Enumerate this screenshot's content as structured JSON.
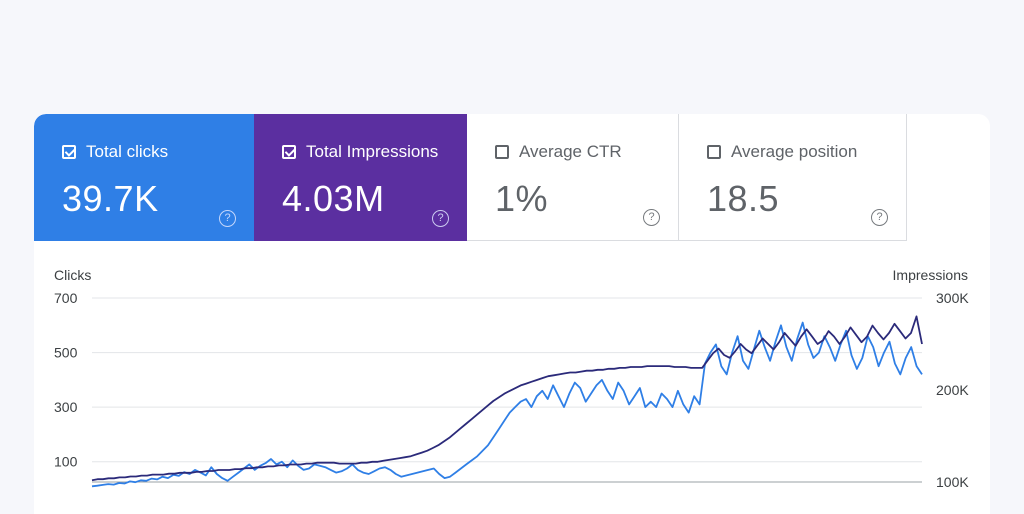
{
  "metrics": [
    {
      "label": "Total clicks",
      "value": "39.7K",
      "checked": true,
      "color": "#2f7fe6"
    },
    {
      "label": "Total Impressions",
      "value": "4.03M",
      "checked": true,
      "color": "#5b2fa0"
    },
    {
      "label": "Average CTR",
      "value": "1%",
      "checked": false
    },
    {
      "label": "Average position",
      "value": "18.5",
      "checked": false
    }
  ],
  "help_glyph": "?",
  "chart_data": {
    "type": "line",
    "left_axis": {
      "title": "Clicks",
      "ticks": [
        100,
        300,
        500,
        700
      ],
      "tick_labels": [
        "100",
        "300",
        "500",
        "700"
      ],
      "range": [
        0,
        700
      ]
    },
    "right_axis": {
      "title": "Impressions",
      "ticks": [
        100000,
        200000,
        300000
      ],
      "tick_labels": [
        "100K",
        "200K",
        "300K"
      ],
      "range": [
        100000,
        300000
      ]
    },
    "grid": true,
    "series": [
      {
        "axis": "left",
        "color": "#2f7fe6",
        "values": [
          10,
          12,
          15,
          18,
          16,
          22,
          20,
          28,
          25,
          32,
          30,
          38,
          35,
          45,
          40,
          52,
          48,
          62,
          55,
          70,
          60,
          50,
          80,
          55,
          40,
          30,
          45,
          60,
          75,
          90,
          70,
          85,
          95,
          110,
          90,
          100,
          80,
          105,
          85,
          70,
          75,
          90,
          85,
          80,
          70,
          60,
          65,
          75,
          90,
          70,
          60,
          55,
          65,
          75,
          80,
          70,
          55,
          45,
          50,
          55,
          60,
          65,
          70,
          75,
          55,
          40,
          45,
          60,
          75,
          90,
          105,
          120,
          140,
          160,
          190,
          220,
          250,
          280,
          300,
          320,
          330,
          300,
          340,
          360,
          330,
          380,
          340,
          300,
          350,
          390,
          370,
          320,
          350,
          380,
          400,
          360,
          330,
          390,
          360,
          310,
          340,
          370,
          300,
          320,
          300,
          350,
          330,
          300,
          360,
          310,
          280,
          340,
          310,
          460,
          500,
          530,
          450,
          420,
          500,
          560,
          470,
          440,
          510,
          580,
          520,
          470,
          540,
          600,
          520,
          470,
          550,
          610,
          530,
          480,
          500,
          560,
          520,
          470,
          530,
          580,
          490,
          440,
          480,
          560,
          520,
          450,
          500,
          540,
          460,
          420,
          480,
          520,
          450,
          420
        ]
      },
      {
        "axis": "right",
        "color": "#2b2a7a",
        "values": [
          102000,
          103000,
          103000,
          104000,
          104000,
          105000,
          105000,
          106000,
          106000,
          107000,
          107000,
          108000,
          108000,
          108000,
          109000,
          109000,
          110000,
          110000,
          110000,
          111000,
          111000,
          112000,
          112000,
          113000,
          113000,
          113000,
          114000,
          114000,
          115000,
          115000,
          116000,
          116000,
          117000,
          117000,
          118000,
          118000,
          119000,
          119000,
          119000,
          120000,
          120000,
          121000,
          121000,
          121000,
          121000,
          120000,
          120000,
          120000,
          120000,
          121000,
          121000,
          122000,
          122000,
          123000,
          124000,
          125000,
          126000,
          127000,
          128000,
          130000,
          132000,
          134000,
          137000,
          140000,
          144000,
          148000,
          153000,
          158000,
          163000,
          168000,
          173000,
          178000,
          183000,
          188000,
          192000,
          196000,
          199000,
          202000,
          205000,
          207000,
          209000,
          211000,
          213000,
          215000,
          216000,
          217000,
          218000,
          219000,
          219000,
          220000,
          221000,
          221000,
          222000,
          222000,
          223000,
          223000,
          224000,
          224000,
          225000,
          225000,
          225000,
          226000,
          226000,
          226000,
          226000,
          226000,
          225000,
          225000,
          225000,
          224000,
          224000,
          224000,
          232000,
          240000,
          245000,
          238000,
          235000,
          242000,
          250000,
          244000,
          240000,
          248000,
          256000,
          250000,
          244000,
          252000,
          262000,
          255000,
          248000,
          258000,
          266000,
          258000,
          250000,
          254000,
          264000,
          258000,
          250000,
          258000,
          268000,
          260000,
          252000,
          258000,
          270000,
          262000,
          255000,
          262000,
          272000,
          264000,
          256000,
          262000,
          280000,
          250000
        ]
      }
    ]
  }
}
